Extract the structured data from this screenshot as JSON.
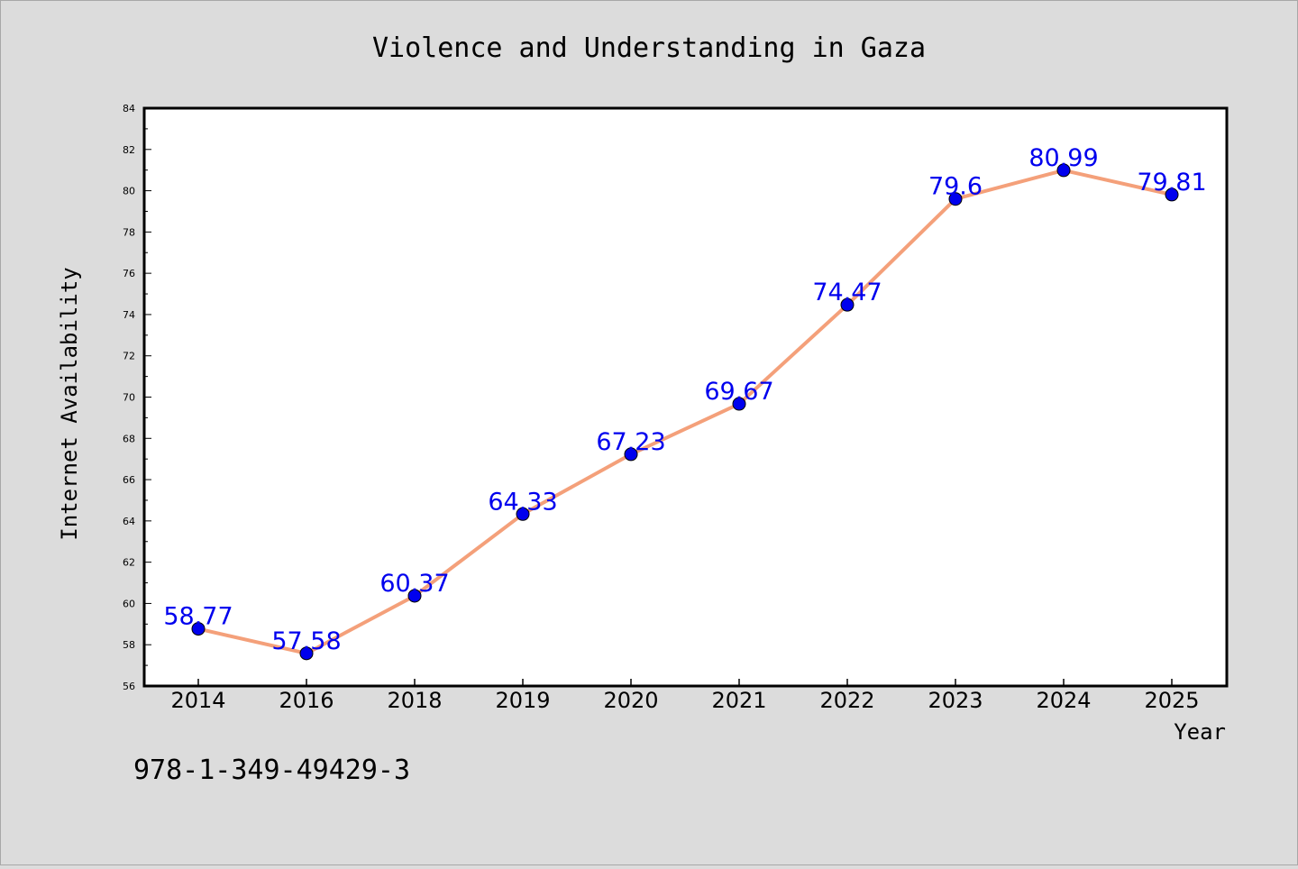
{
  "chart_data": {
    "type": "line",
    "title": "Violence and Understanding in Gaza",
    "xlabel": "Year",
    "ylabel": "Internet Availability",
    "categories": [
      "2014",
      "2016",
      "2018",
      "2019",
      "2020",
      "2021",
      "2022",
      "2023",
      "2024",
      "2025"
    ],
    "series": [
      {
        "values": [
          58.77,
          57.58,
          60.37,
          64.33,
          67.23,
          69.67,
          74.47,
          79.6,
          80.99,
          79.81
        ],
        "labels": [
          "58.77",
          "57.58",
          "60.37",
          "64.33",
          "67.23",
          "69.67",
          "74.47",
          "79.6",
          "80.99",
          "79.81"
        ],
        "line_color": "#f4a07a",
        "marker_color": "#0000ee",
        "label_color": "#0000ee"
      }
    ],
    "ylim": [
      56,
      84
    ],
    "y_ticks": [
      "56",
      "58",
      "60",
      "62",
      "64",
      "66",
      "68",
      "70",
      "72",
      "74",
      "76",
      "78",
      "80",
      "82",
      "84"
    ],
    "grid": false,
    "legend": "none"
  },
  "footer_text": "978-1-349-49429-3",
  "colors": {
    "background": "#dcdcdc",
    "plot_background": "#ffffff",
    "axis": "#000000"
  }
}
